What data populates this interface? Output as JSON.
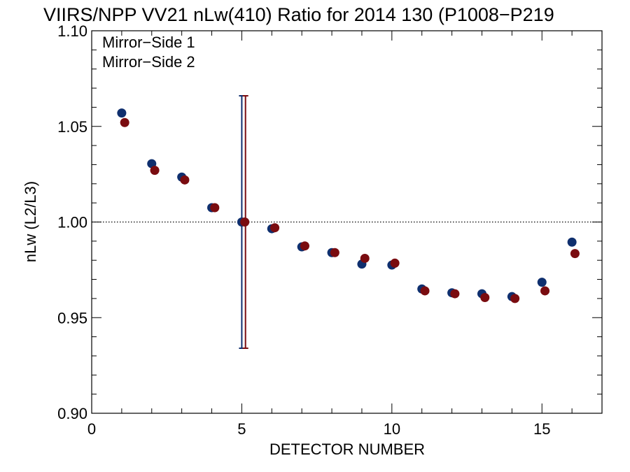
{
  "chart_data": {
    "type": "scatter",
    "title": "VIIRS/NPP VV21 nLw(410) Ratio for 2014 130 (P1008−P219",
    "xlabel": "DETECTOR NUMBER",
    "ylabel": "nLw (L2/L3)",
    "xlim": [
      0,
      17
    ],
    "ylim": [
      0.9,
      1.1
    ],
    "x_ticks": [
      0,
      5,
      10,
      15
    ],
    "x_tick_labels": [
      "0",
      "5",
      "10",
      "15"
    ],
    "y_ticks": [
      0.9,
      0.95,
      1.0,
      1.05,
      1.1
    ],
    "y_tick_labels": [
      "0.90",
      "0.95",
      "1.00",
      "1.05",
      "1.10"
    ],
    "reference_line": {
      "y": 1.0,
      "style": "dotted"
    },
    "legend_position": "top-left",
    "grid": false,
    "series": [
      {
        "name": "Mirror−Side 1",
        "color": "#0f2f6e",
        "x_offset": 0,
        "x": [
          1,
          2,
          3,
          4,
          5,
          6,
          7,
          8,
          9,
          10,
          11,
          12,
          13,
          14,
          15,
          16
        ],
        "y": [
          1.057,
          1.0305,
          1.0235,
          1.0075,
          1.0,
          0.9965,
          0.987,
          0.984,
          0.978,
          0.9775,
          0.965,
          0.963,
          0.9625,
          0.961,
          0.9685,
          0.9895
        ],
        "error_bar": {
          "x": 5,
          "low": 0.934,
          "high": 1.066
        }
      },
      {
        "name": "Mirror−Side 2",
        "color": "#7a0c10",
        "x_offset": 0.1,
        "x": [
          1,
          2,
          3,
          4,
          5,
          6,
          7,
          8,
          9,
          10,
          11,
          12,
          13,
          14,
          15,
          16
        ],
        "y": [
          1.052,
          1.027,
          1.022,
          1.0075,
          1.0,
          0.997,
          0.9875,
          0.984,
          0.981,
          0.9785,
          0.964,
          0.9625,
          0.9605,
          0.96,
          0.964,
          0.9835
        ],
        "error_bar": {
          "x": 5,
          "low": 0.934,
          "high": 1.066
        }
      }
    ]
  }
}
